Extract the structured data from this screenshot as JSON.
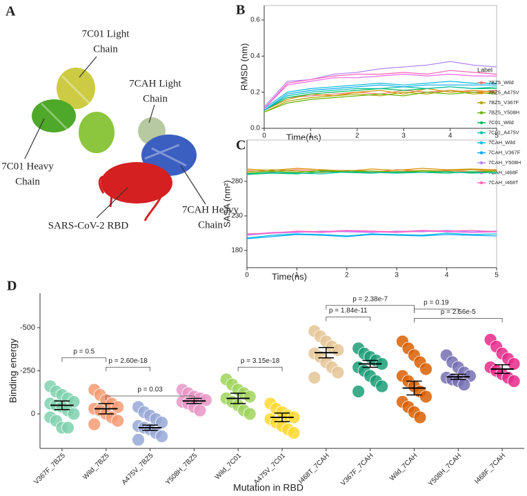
{
  "panel_a": {
    "letter": "A",
    "labels": [
      {
        "lines": [
          "7C01 Light",
          "Chain"
        ]
      },
      {
        "lines": [
          "7CAH Light",
          "Chain"
        ]
      },
      {
        "lines": [
          "7C01 Heavy",
          "Chain"
        ]
      },
      {
        "lines": [
          "7CAH Heavy",
          "Chain"
        ]
      },
      {
        "lines": [
          "SARS-CoV-2 RBD"
        ]
      }
    ]
  },
  "chart_data": [
    {
      "type": "line",
      "panel": "B",
      "xlabel": "Time(ns)",
      "ylabel": "RMSD (nm)",
      "x": [
        0,
        0.5,
        1,
        1.5,
        2,
        2.5,
        3,
        3.5,
        4,
        4.5,
        5
      ],
      "xlim": [
        0,
        5
      ],
      "xticks": [
        0,
        1,
        2,
        3,
        4,
        5
      ],
      "ylim": [
        0,
        0.68
      ],
      "yticks": [
        {
          "value": 0,
          "label": "0.0"
        },
        0.2,
        0.4,
        0.6
      ],
      "legend_title": "Label",
      "legend_position": "right",
      "series": [
        {
          "name": "7BZ5_Wild",
          "color": "#f8766d",
          "values": [
            0.1,
            0.17,
            0.18,
            0.19,
            0.2,
            0.19,
            0.21,
            0.2,
            0.21,
            0.2,
            0.21
          ]
        },
        {
          "name": "7BZ5_A475V",
          "color": "#db8e00",
          "values": [
            0.1,
            0.16,
            0.19,
            0.18,
            0.2,
            0.21,
            0.19,
            0.22,
            0.2,
            0.21,
            0.2
          ]
        },
        {
          "name": "7BZ5_V367F",
          "color": "#aea200",
          "values": [
            0.09,
            0.15,
            0.17,
            0.18,
            0.19,
            0.18,
            0.2,
            0.19,
            0.21,
            0.19,
            0.2
          ]
        },
        {
          "name": "7BZ5_Y508H",
          "color": "#64b200",
          "values": [
            0.09,
            0.14,
            0.16,
            0.17,
            0.18,
            0.19,
            0.18,
            0.2,
            0.19,
            0.2,
            0.19
          ]
        },
        {
          "name": "7C01_Wild",
          "color": "#00bd5c",
          "values": [
            0.1,
            0.17,
            0.19,
            0.2,
            0.21,
            0.22,
            0.21,
            0.22,
            0.23,
            0.22,
            0.22
          ]
        },
        {
          "name": "7C01_A475V",
          "color": "#00c1a7",
          "values": [
            0.1,
            0.18,
            0.2,
            0.21,
            0.22,
            0.22,
            0.23,
            0.22,
            0.23,
            0.22,
            0.23
          ]
        },
        {
          "name": "7CAH_Wild",
          "color": "#00bade",
          "values": [
            0.11,
            0.2,
            0.22,
            0.23,
            0.24,
            0.25,
            0.24,
            0.25,
            0.26,
            0.25,
            0.25
          ]
        },
        {
          "name": "7CAH_V367F",
          "color": "#00a6ff",
          "values": [
            0.1,
            0.19,
            0.21,
            0.22,
            0.23,
            0.24,
            0.23,
            0.24,
            0.24,
            0.24,
            0.24
          ]
        },
        {
          "name": "7CAH_Y508H",
          "color": "#b385ff",
          "values": [
            0.12,
            0.26,
            0.27,
            0.3,
            0.31,
            0.33,
            0.34,
            0.35,
            0.37,
            0.35,
            0.34
          ]
        },
        {
          "name": "7CAH_I468F",
          "color": "#ef67eb",
          "values": [
            0.11,
            0.24,
            0.26,
            0.28,
            0.28,
            0.29,
            0.3,
            0.29,
            0.3,
            0.29,
            0.29
          ]
        },
        {
          "name": "7CAH_I468T",
          "color": "#ff63b6",
          "values": [
            0.11,
            0.25,
            0.27,
            0.29,
            0.3,
            0.3,
            0.31,
            0.3,
            0.32,
            0.31,
            0.3
          ]
        }
      ]
    },
    {
      "type": "line",
      "panel": "C",
      "xlabel": "Time(ns)",
      "ylabel": "SASA (nm²)",
      "x": [
        0,
        0.5,
        1,
        1.5,
        2,
        2.5,
        3,
        3.5,
        4,
        4.5,
        5
      ],
      "xlim": [
        0,
        5
      ],
      "xticks": [
        0,
        1,
        2,
        3,
        4,
        5
      ],
      "ylim": [
        155,
        340
      ],
      "yticks": [
        180,
        230,
        280
      ],
      "series": [
        {
          "color": "#f8766d",
          "values": [
            296,
            294,
            297,
            295,
            296,
            293,
            297,
            295,
            296,
            294,
            296
          ]
        },
        {
          "color": "#db8e00",
          "values": [
            298,
            296,
            299,
            297,
            295,
            298,
            296,
            299,
            297,
            298,
            297
          ]
        },
        {
          "color": "#aea200",
          "values": [
            294,
            297,
            295,
            293,
            296,
            295,
            294,
            296,
            295,
            297,
            295
          ]
        },
        {
          "color": "#64b200",
          "values": [
            292,
            295,
            293,
            296,
            294,
            295,
            293,
            295,
            294,
            293,
            295
          ]
        },
        {
          "color": "#00bd5c",
          "values": [
            290,
            292,
            291,
            294,
            293,
            292,
            294,
            293,
            292,
            294,
            292
          ]
        },
        {
          "color": "#00c1a7",
          "values": [
            291,
            293,
            292,
            291,
            294,
            293,
            292,
            293,
            294,
            292,
            293
          ]
        },
        {
          "color": "#00bade",
          "values": [
            198,
            202,
            204,
            203,
            201,
            204,
            203,
            202,
            205,
            203,
            204
          ]
        },
        {
          "color": "#00a6ff",
          "values": [
            197,
            200,
            203,
            202,
            200,
            203,
            202,
            201,
            203,
            202,
            201
          ]
        },
        {
          "color": "#b385ff",
          "values": [
            202,
            205,
            206,
            208,
            207,
            206,
            208,
            207,
            209,
            207,
            208
          ]
        },
        {
          "color": "#ef67eb",
          "values": [
            203,
            206,
            207,
            206,
            208,
            207,
            206,
            208,
            207,
            206,
            207
          ]
        },
        {
          "color": "#ff63b6",
          "values": [
            204,
            205,
            208,
            207,
            209,
            208,
            207,
            209,
            208,
            209,
            207
          ]
        }
      ]
    },
    {
      "type": "beeswarm",
      "panel": "D",
      "xlabel": "Mutation in RBD",
      "ylabel": "Binding energy",
      "categories": [
        "V367F_7BZ5",
        "Wild_7BZ5",
        "A475V_7BZ5",
        "Y508H_7BZ5",
        "Wild_7C01",
        "A475V_7C01",
        "I468T_7CAH",
        "V367F_7CAH",
        "Wild_7CAH",
        "Y508H_7CAH",
        "I468F_7CAH"
      ],
      "colors": [
        "#7fd1ae",
        "#f79a72",
        "#97a8d6",
        "#e895c6",
        "#9fd35a",
        "#ffd92f",
        "#e5c494",
        "#1b9e77",
        "#d95f02",
        "#7570b3",
        "#e7298a"
      ],
      "points": [
        [
          -160,
          -130,
          -110,
          -90,
          -70,
          -60,
          -50,
          -40,
          -20,
          0,
          20,
          40,
          80,
          80
        ],
        [
          -140,
          -110,
          -80,
          -60,
          -40,
          -30,
          -20,
          0,
          20,
          40,
          60
        ],
        [
          -40,
          -10,
          10,
          30,
          50,
          70,
          80,
          90,
          110,
          130,
          150
        ],
        [
          -140,
          -120,
          -100,
          -90,
          -80,
          -70,
          -60,
          -40,
          -20
        ],
        [
          -200,
          -170,
          -140,
          -120,
          -100,
          -90,
          -70,
          -50,
          -20,
          0
        ],
        [
          -60,
          -30,
          -10,
          10,
          20,
          30,
          50,
          70,
          90,
          110
        ],
        [
          -480,
          -450,
          -420,
          -390,
          -370,
          -350,
          -330,
          -300,
          -270,
          -240,
          -210
        ],
        [
          -380,
          -350,
          -330,
          -310,
          -290,
          -270,
          -250,
          -220,
          -190,
          -160,
          -130
        ],
        [
          -420,
          -380,
          -340,
          -300,
          -260,
          -220,
          -190,
          -160,
          -130,
          -100,
          -70,
          -40,
          -10,
          20
        ],
        [
          -340,
          -300,
          -270,
          -240,
          -220,
          -210,
          -200,
          -190,
          -170
        ],
        [
          -430,
          -390,
          -350,
          -320,
          -290,
          -270,
          -250,
          -230,
          -210,
          -190
        ]
      ],
      "means": [
        -50,
        -30,
        80,
        -75,
        -90,
        20,
        -355,
        -290,
        -150,
        -215,
        -260
      ],
      "errors": [
        25,
        30,
        15,
        15,
        30,
        25,
        30,
        20,
        40,
        15,
        25
      ],
      "ylim": [
        200,
        -700
      ],
      "yticks": [
        -500,
        -250,
        0
      ],
      "comparisons": [
        {
          "from": "V367F_7BZ5",
          "to": "Wild_7BZ5",
          "y": -325,
          "label": "p = 0.5"
        },
        {
          "from": "Wild_7BZ5",
          "to": "A475V_7BZ5",
          "y": -271,
          "label": "p = 2.60e-18"
        },
        {
          "from": "Wild_7BZ5",
          "to": "Y508H_7BZ5",
          "y": -104,
          "label": "p = 0.03"
        },
        {
          "from": "Wild_7C01",
          "to": "A475V_7C01",
          "y": -271,
          "label": "p = 3.15e-18"
        },
        {
          "from": "I468T_7CAH",
          "to": "V367F_7CAH",
          "y": -562,
          "label": "p = 1.84e-11"
        },
        {
          "from": "I468T_7CAH",
          "to": "Wild_7CAH",
          "y": -629,
          "label": "p = 2.38e-7"
        },
        {
          "from": "Wild_7CAH",
          "to": "Y508H_7CAH",
          "y": -608,
          "label": "p = 0.19"
        },
        {
          "from": "Wild_7CAH",
          "to": "I468F_7CAH",
          "y": -554,
          "label": "p = 2.56e-5"
        }
      ]
    }
  ]
}
